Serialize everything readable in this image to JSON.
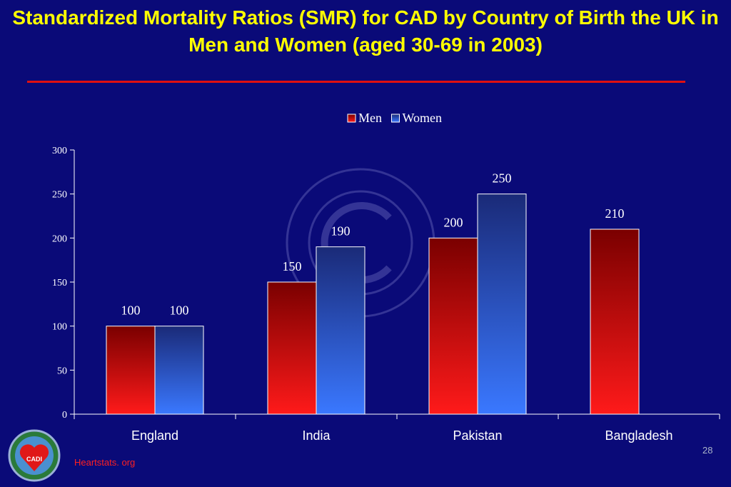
{
  "slide": {
    "title": "Standardized Mortality Ratios (SMR) for CAD by Country of  Birth the UK in Men and Women (aged 30-69 in 2003)",
    "source": "Heartstats. org",
    "slide_number": "28",
    "logo_text": "CADI",
    "colors": {
      "background": "#0a0a78",
      "title": "#ffff00",
      "rule": "#e01010",
      "source": "#ff2020"
    }
  },
  "chart_data": {
    "type": "bar",
    "categories": [
      "England",
      "India",
      "Pakistan",
      "Bangladesh"
    ],
    "series": [
      {
        "name": "Men",
        "values": [
          100,
          150,
          200,
          210
        ],
        "color_top": "#7a0000",
        "color_bottom": "#ff1a1a"
      },
      {
        "name": "Women",
        "values": [
          100,
          190,
          250,
          null
        ],
        "color_top": "#1a2a78",
        "color_bottom": "#3a78ff"
      }
    ],
    "data_labels": [
      [
        "100",
        "150",
        "200",
        "210"
      ],
      [
        "100",
        "190",
        "250",
        ""
      ]
    ],
    "y_ticks": [
      0,
      50,
      100,
      150,
      200,
      250,
      300
    ],
    "ylim": [
      0,
      300
    ],
    "title": "",
    "xlabel": "",
    "ylabel": "",
    "legend": {
      "position": "top-center",
      "entries": [
        "Men",
        "Women"
      ]
    },
    "grid": false
  }
}
